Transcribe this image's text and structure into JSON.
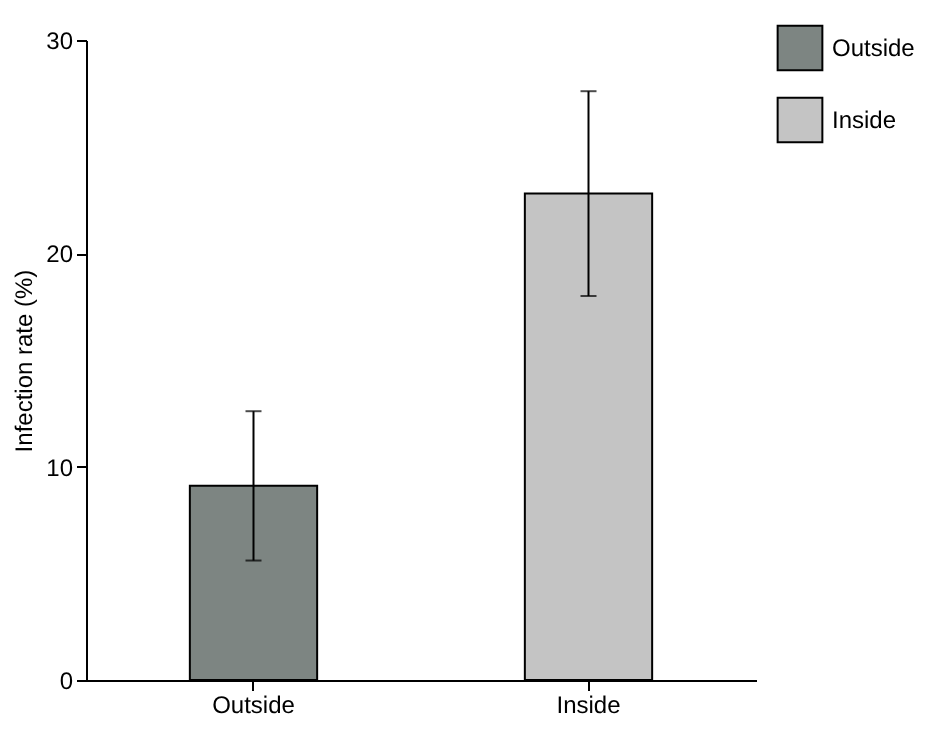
{
  "chart_data": {
    "type": "bar",
    "ylabel": "Infection rate (%)",
    "categories": [
      "Outside",
      "Inside"
    ],
    "series": [
      {
        "name": "Outside",
        "color": "#7d8582",
        "values": [
          9.1,
          null
        ],
        "errors": [
          3.5,
          null
        ]
      },
      {
        "name": "Inside",
        "color": "#c4c4c4",
        "values": [
          null,
          22.8
        ],
        "errors": [
          null,
          4.8
        ]
      }
    ],
    "ylim": [
      0,
      30
    ],
    "yticks": [
      0,
      10,
      20,
      30
    ],
    "grid": false,
    "legend": "top right"
  }
}
